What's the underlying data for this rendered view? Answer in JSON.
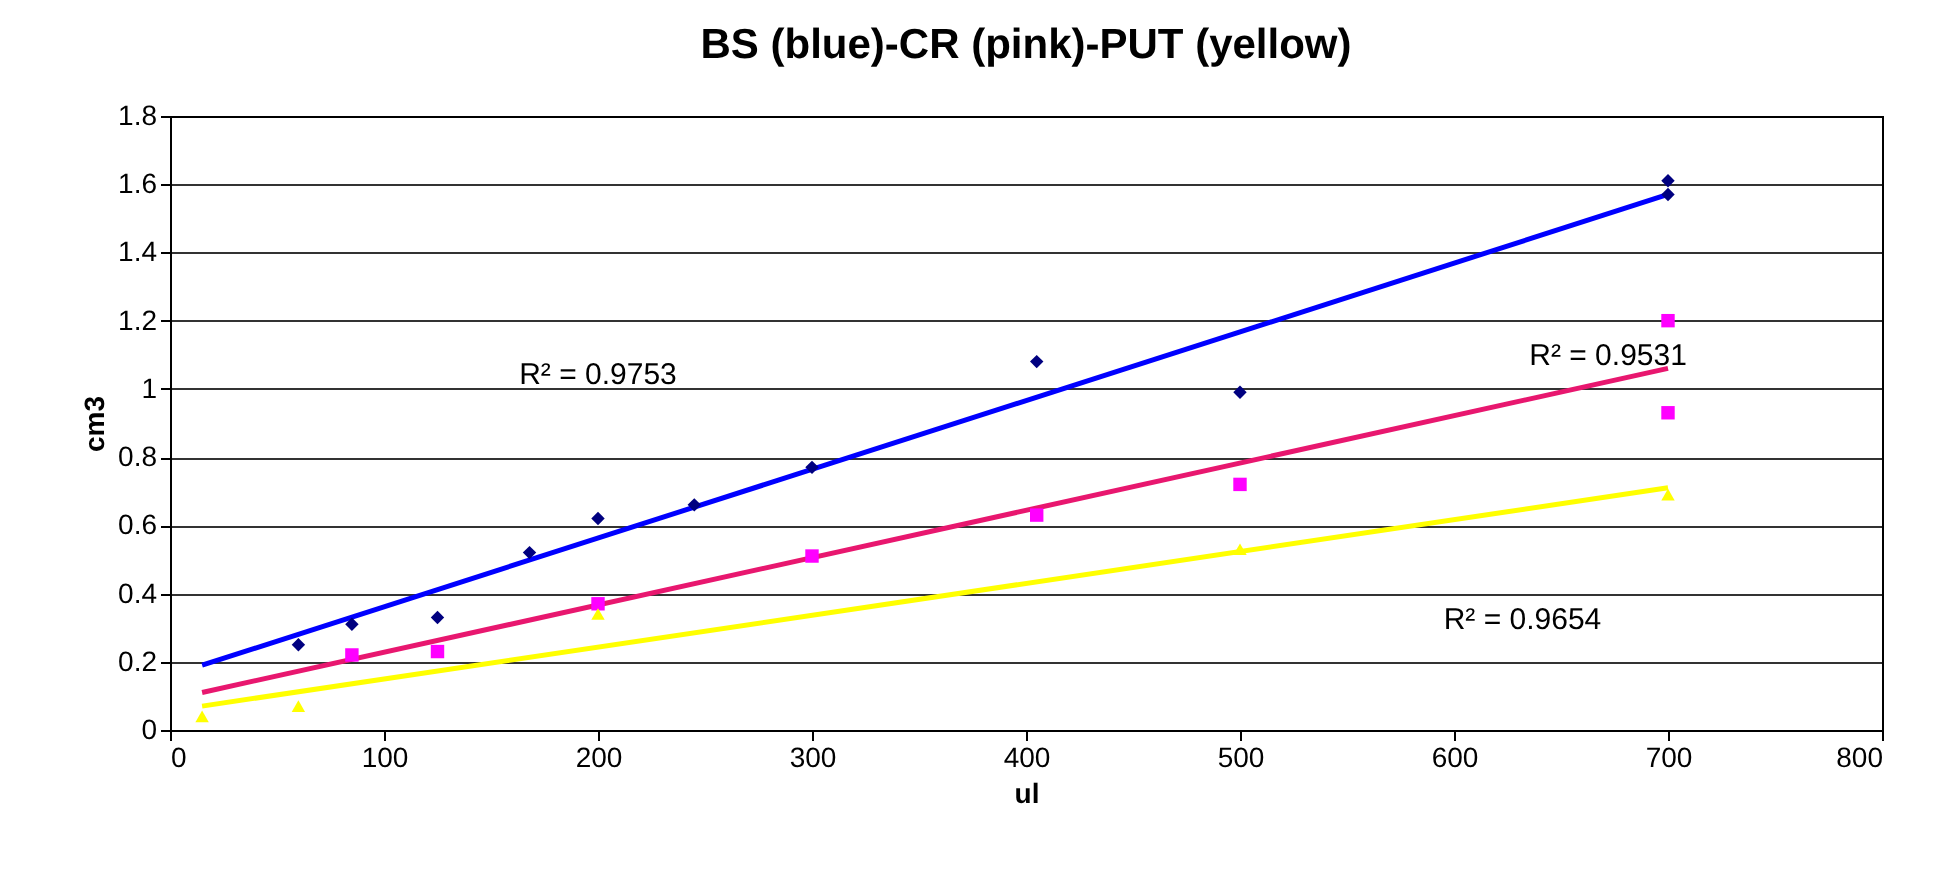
{
  "chart_data": {
    "type": "scatter",
    "title": "BS (blue)-CR (pink)-PUT (yellow)",
    "xlabel": "ul",
    "ylabel": "cm3",
    "xlim": [
      0,
      800
    ],
    "xticks": [
      0,
      100,
      200,
      300,
      400,
      500,
      600,
      700,
      800
    ],
    "ylim": [
      0,
      1.8
    ],
    "yticks": [
      0,
      0.2,
      0.4,
      0.6,
      0.8,
      1,
      1.2,
      1.4,
      1.6,
      1.8
    ],
    "grid": "y",
    "series": [
      {
        "marker": "diamond",
        "color": "#000080",
        "x": [
          60,
          85,
          125,
          168,
          200,
          245,
          300,
          405,
          500,
          700,
          700
        ],
        "values": [
          0.25,
          0.31,
          0.33,
          0.52,
          0.62,
          0.66,
          0.77,
          1.08,
          0.99,
          1.61,
          1.57
        ]
      },
      {
        "marker": "square",
        "color": "#ff00ff",
        "x": [
          85,
          125,
          200,
          300,
          405,
          500,
          700,
          700
        ],
        "values": [
          0.22,
          0.23,
          0.37,
          0.51,
          0.63,
          0.72,
          1.2,
          0.93
        ]
      },
      {
        "marker": "triangle",
        "color": "#ffff00",
        "x": [
          15,
          60,
          200,
          500,
          700
        ],
        "values": [
          0.04,
          0.07,
          0.34,
          0.53,
          0.69
        ]
      },
      {
        "type": "line",
        "marker": "none",
        "color": "#0000ff",
        "x": [
          15,
          700
        ],
        "values": [
          0.19,
          1.57
        ]
      },
      {
        "type": "line",
        "marker": "none",
        "color": "#e8176f",
        "x": [
          15,
          700
        ],
        "values": [
          0.11,
          1.06
        ]
      },
      {
        "type": "line",
        "marker": "none",
        "color": "#ffff00",
        "x": [
          15,
          700
        ],
        "values": [
          0.07,
          0.71
        ]
      }
    ],
    "annotations": [
      "R² = 0.9753",
      "R² = 0.9531",
      "R² = 0.9654"
    ]
  }
}
